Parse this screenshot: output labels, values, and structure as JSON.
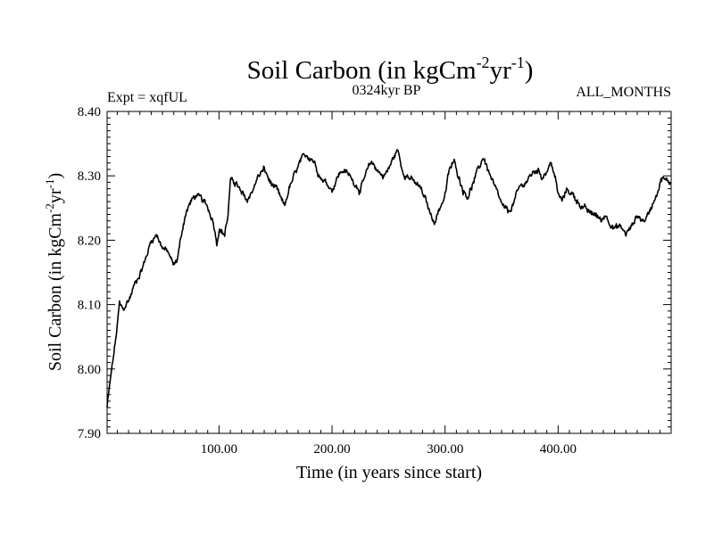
{
  "chart_data": {
    "type": "line",
    "title": "Soil Carbon (in kgCm",
    "title_sup1": "-2",
    "title_mid": "yr",
    "title_sup2": "-1",
    "title_end": ")",
    "subtitle_left": "Expt = xqfUL",
    "subtitle_center": "0324kyr BP",
    "subtitle_right": "ALL_MONTHS",
    "xlabel": "Time (in years since start)",
    "ylabel_main": "Soil Carbon (in kgCm",
    "ylabel_sup1": "-2",
    "ylabel_mid": "yr",
    "ylabel_sup2": "-1",
    "ylabel_end": ")",
    "xlim": [
      1,
      500
    ],
    "ylim": [
      7.9,
      8.4
    ],
    "xticks": [
      100,
      200,
      300,
      400
    ],
    "xtick_labels": [
      "100.00",
      "200.00",
      "300.00",
      "400.00"
    ],
    "yticks": [
      7.9,
      8.0,
      8.1,
      8.2,
      8.3,
      8.4
    ],
    "ytick_labels": [
      "7.90",
      "8.00",
      "8.10",
      "8.20",
      "8.30",
      "8.40"
    ],
    "series": [
      {
        "name": "Soil Carbon",
        "color": "#000000",
        "anchors": [
          [
            1,
            7.94
          ],
          [
            3,
            7.97
          ],
          [
            6,
            8.01
          ],
          [
            9,
            8.05
          ],
          [
            12,
            8.1
          ],
          [
            15,
            8.09
          ],
          [
            18,
            8.1
          ],
          [
            21,
            8.11
          ],
          [
            25,
            8.13
          ],
          [
            30,
            8.15
          ],
          [
            35,
            8.17
          ],
          [
            40,
            8.2
          ],
          [
            45,
            8.21
          ],
          [
            50,
            8.19
          ],
          [
            55,
            8.18
          ],
          [
            60,
            8.16
          ],
          [
            63,
            8.17
          ],
          [
            66,
            8.2
          ],
          [
            70,
            8.24
          ],
          [
            75,
            8.26
          ],
          [
            80,
            8.27
          ],
          [
            85,
            8.26
          ],
          [
            90,
            8.25
          ],
          [
            95,
            8.23
          ],
          [
            98,
            8.2
          ],
          [
            100,
            8.22
          ],
          [
            105,
            8.21
          ],
          [
            108,
            8.24
          ],
          [
            110,
            8.29
          ],
          [
            115,
            8.29
          ],
          [
            120,
            8.27
          ],
          [
            125,
            8.26
          ],
          [
            130,
            8.28
          ],
          [
            135,
            8.3
          ],
          [
            140,
            8.31
          ],
          [
            145,
            8.29
          ],
          [
            150,
            8.28
          ],
          [
            155,
            8.26
          ],
          [
            158,
            8.25
          ],
          [
            162,
            8.28
          ],
          [
            167,
            8.3
          ],
          [
            172,
            8.32
          ],
          [
            178,
            8.33
          ],
          [
            182,
            8.33
          ],
          [
            185,
            8.32
          ],
          [
            190,
            8.3
          ],
          [
            195,
            8.29
          ],
          [
            200,
            8.28
          ],
          [
            205,
            8.3
          ],
          [
            210,
            8.31
          ],
          [
            215,
            8.3
          ],
          [
            220,
            8.29
          ],
          [
            225,
            8.28
          ],
          [
            230,
            8.3
          ],
          [
            235,
            8.32
          ],
          [
            240,
            8.31
          ],
          [
            245,
            8.3
          ],
          [
            250,
            8.31
          ],
          [
            255,
            8.33
          ],
          [
            258,
            8.34
          ],
          [
            262,
            8.31
          ],
          [
            268,
            8.3
          ],
          [
            272,
            8.29
          ],
          [
            278,
            8.28
          ],
          [
            283,
            8.26
          ],
          [
            287,
            8.24
          ],
          [
            291,
            8.23
          ],
          [
            295,
            8.25
          ],
          [
            300,
            8.27
          ],
          [
            304,
            8.31
          ],
          [
            308,
            8.32
          ],
          [
            312,
            8.3
          ],
          [
            316,
            8.28
          ],
          [
            320,
            8.27
          ],
          [
            325,
            8.29
          ],
          [
            330,
            8.31
          ],
          [
            334,
            8.33
          ],
          [
            338,
            8.31
          ],
          [
            342,
            8.29
          ],
          [
            346,
            8.27
          ],
          [
            351,
            8.25
          ],
          [
            356,
            8.24
          ],
          [
            361,
            8.26
          ],
          [
            366,
            8.28
          ],
          [
            371,
            8.29
          ],
          [
            376,
            8.3
          ],
          [
            381,
            8.31
          ],
          [
            386,
            8.3
          ],
          [
            390,
            8.31
          ],
          [
            394,
            8.32
          ],
          [
            397,
            8.3
          ],
          [
            400,
            8.27
          ],
          [
            404,
            8.26
          ],
          [
            408,
            8.28
          ],
          [
            413,
            8.27
          ],
          [
            418,
            8.26
          ],
          [
            423,
            8.25
          ],
          [
            428,
            8.24
          ],
          [
            433,
            8.24
          ],
          [
            438,
            8.23
          ],
          [
            442,
            8.24
          ],
          [
            446,
            8.23
          ],
          [
            450,
            8.22
          ],
          [
            455,
            8.22
          ],
          [
            460,
            8.21
          ],
          [
            465,
            8.22
          ],
          [
            470,
            8.24
          ],
          [
            475,
            8.23
          ],
          [
            480,
            8.24
          ],
          [
            484,
            8.26
          ],
          [
            488,
            8.28
          ],
          [
            492,
            8.3
          ],
          [
            496,
            8.29
          ],
          [
            500,
            8.29
          ]
        ],
        "step": 0.5,
        "noise_amplitude": 0.006
      }
    ]
  }
}
